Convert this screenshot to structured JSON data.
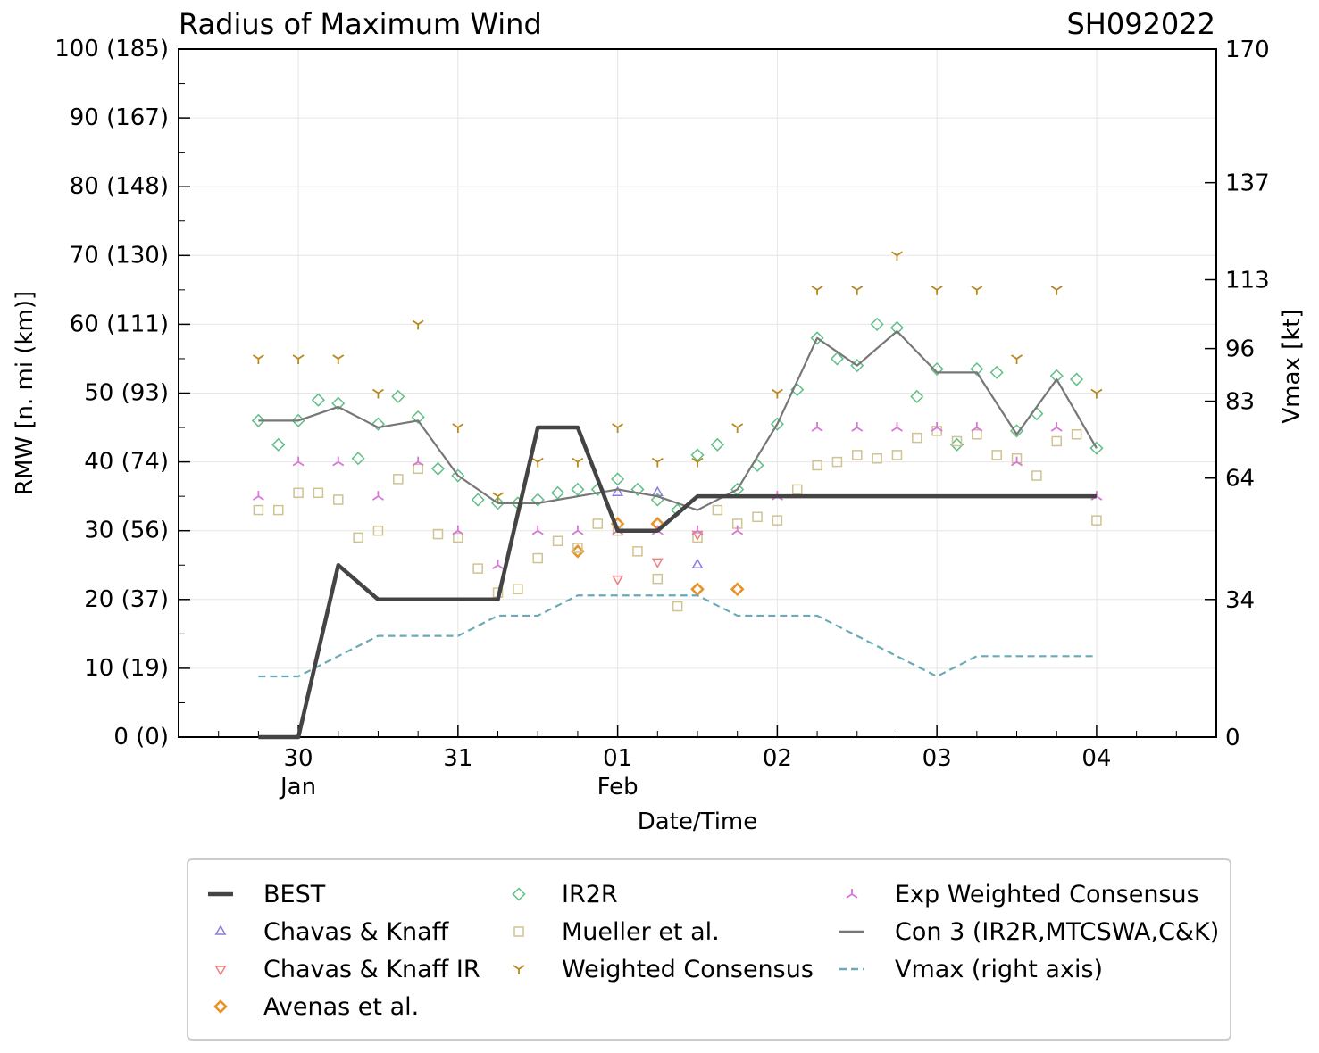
{
  "title": "Radius of Maximum Wind",
  "storm_id": "SH092022",
  "chart_data": {
    "type": "line",
    "title": "Radius of Maximum Wind",
    "xlabel": "Date/Time",
    "ylabel": "RMW [n. mi (km)]",
    "y2label": "Vmax [kt]",
    "x_units": "days after 00 UTC 30 Jan 2022",
    "xlim": [
      -0.75,
      5.75
    ],
    "ylim": [
      0,
      100
    ],
    "x_ticks": [
      {
        "x": 0,
        "label": "30",
        "sub": "Jan"
      },
      {
        "x": 1,
        "label": "31",
        "sub": ""
      },
      {
        "x": 2,
        "label": "01",
        "sub": "Feb"
      },
      {
        "x": 3,
        "label": "02",
        "sub": ""
      },
      {
        "x": 4,
        "label": "03",
        "sub": ""
      },
      {
        "x": 5,
        "label": "04",
        "sub": ""
      }
    ],
    "y_ticks": [
      {
        "v": 0,
        "label": "0 (0)"
      },
      {
        "v": 10,
        "label": "10 (19)"
      },
      {
        "v": 20,
        "label": "20 (37)"
      },
      {
        "v": 30,
        "label": "30 (56)"
      },
      {
        "v": 40,
        "label": "40 (74)"
      },
      {
        "v": 50,
        "label": "50 (93)"
      },
      {
        "v": 60,
        "label": "60 (111)"
      },
      {
        "v": 70,
        "label": "70 (130)"
      },
      {
        "v": 80,
        "label": "80 (148)"
      },
      {
        "v": 90,
        "label": "90 (167)"
      },
      {
        "v": 100,
        "label": "100 (185)"
      }
    ],
    "y2_range": [
      0,
      170
    ],
    "y2_ticks": [
      {
        "v": 0,
        "label": "0"
      },
      {
        "v": 34,
        "label": "34"
      },
      {
        "v": 64,
        "label": "64"
      },
      {
        "v": 83,
        "label": "83"
      },
      {
        "v": 96,
        "label": "96"
      },
      {
        "v": 113,
        "label": "113"
      },
      {
        "v": 137,
        "label": "137"
      },
      {
        "v": 170,
        "label": "170"
      }
    ],
    "series": [
      {
        "name": "BEST",
        "marker": "line",
        "color": "#444444",
        "points": [
          [
            -0.25,
            0
          ],
          [
            0,
            0
          ],
          [
            0.25,
            25
          ],
          [
            0.5,
            20
          ],
          [
            0.75,
            20
          ],
          [
            1,
            20
          ],
          [
            1.25,
            20
          ],
          [
            1.5,
            45
          ],
          [
            1.75,
            45
          ],
          [
            2,
            30
          ],
          [
            2.25,
            30
          ],
          [
            2.5,
            35
          ],
          [
            2.75,
            35
          ],
          [
            3,
            35
          ],
          [
            3.25,
            35
          ],
          [
            3.5,
            35
          ],
          [
            3.75,
            35
          ],
          [
            4,
            35
          ],
          [
            4.25,
            35
          ],
          [
            4.5,
            35
          ],
          [
            4.75,
            35
          ],
          [
            5,
            35
          ]
        ]
      },
      {
        "name": "Chavas & Knaff",
        "marker": "triangle-up",
        "color": "#8a7ce0",
        "points": [
          [
            2,
            35.5
          ],
          [
            2.25,
            35.5
          ],
          [
            2.5,
            25
          ]
        ]
      },
      {
        "name": "Chavas & Knaff IR",
        "marker": "triangle-down",
        "color": "#ee8080",
        "points": [
          [
            2,
            23
          ],
          [
            2.25,
            25.5
          ],
          [
            2.5,
            29.5
          ]
        ]
      },
      {
        "name": "Avenas et al.",
        "marker": "diamond-bold",
        "color": "#e8922a",
        "points": [
          [
            1.75,
            27
          ],
          [
            2,
            31
          ],
          [
            2.25,
            31
          ],
          [
            2.5,
            21.5
          ],
          [
            2.75,
            21.5
          ]
        ]
      },
      {
        "name": "IR2R",
        "marker": "diamond",
        "color": "#5fbf86",
        "points": [
          [
            -0.25,
            46
          ],
          [
            -0.125,
            42.5
          ],
          [
            0,
            46
          ],
          [
            0.125,
            49
          ],
          [
            0.25,
            48.5
          ],
          [
            0.375,
            40.5
          ],
          [
            0.5,
            45.5
          ],
          [
            0.625,
            49.5
          ],
          [
            0.75,
            46.5
          ],
          [
            0.875,
            39
          ],
          [
            1,
            38
          ],
          [
            1.125,
            34.5
          ],
          [
            1.25,
            34
          ],
          [
            1.375,
            34
          ],
          [
            1.5,
            34.5
          ],
          [
            1.625,
            35.5
          ],
          [
            1.75,
            36
          ],
          [
            1.875,
            36
          ],
          [
            2,
            37.5
          ],
          [
            2.125,
            36
          ],
          [
            2.25,
            34.5
          ],
          [
            2.375,
            33
          ],
          [
            2.5,
            41
          ],
          [
            2.625,
            42.5
          ],
          [
            2.75,
            36
          ],
          [
            2.875,
            39.5
          ],
          [
            3,
            45.5
          ],
          [
            3.125,
            50.5
          ],
          [
            3.25,
            58
          ],
          [
            3.375,
            55
          ],
          [
            3.5,
            54
          ],
          [
            3.625,
            60
          ],
          [
            3.75,
            59.5
          ],
          [
            3.875,
            49.5
          ],
          [
            4,
            53.5
          ],
          [
            4.125,
            42.5
          ],
          [
            4.25,
            53.5
          ],
          [
            4.375,
            53
          ],
          [
            4.5,
            44.5
          ],
          [
            4.625,
            47
          ],
          [
            4.75,
            52.5
          ],
          [
            4.875,
            52
          ],
          [
            5,
            42
          ]
        ]
      },
      {
        "name": "Mueller et al.",
        "marker": "square",
        "color": "#cfc390",
        "points": [
          [
            -0.25,
            33
          ],
          [
            -0.125,
            33
          ],
          [
            0,
            35.5
          ],
          [
            0.125,
            35.5
          ],
          [
            0.25,
            34.5
          ],
          [
            0.375,
            29
          ],
          [
            0.5,
            30
          ],
          [
            0.625,
            37.5
          ],
          [
            0.75,
            39
          ],
          [
            0.875,
            29.5
          ],
          [
            1,
            29
          ],
          [
            1.125,
            24.5
          ],
          [
            1.25,
            21
          ],
          [
            1.375,
            21.5
          ],
          [
            1.5,
            26
          ],
          [
            1.625,
            28.5
          ],
          [
            1.75,
            27.5
          ],
          [
            1.875,
            31
          ],
          [
            2,
            30
          ],
          [
            2.125,
            27
          ],
          [
            2.25,
            23
          ],
          [
            2.375,
            19
          ],
          [
            2.5,
            29
          ],
          [
            2.625,
            33
          ],
          [
            2.75,
            31
          ],
          [
            2.875,
            32
          ],
          [
            3,
            31.5
          ],
          [
            3.125,
            36
          ],
          [
            3.25,
            39.5
          ],
          [
            3.375,
            40
          ],
          [
            3.5,
            41
          ],
          [
            3.625,
            40.5
          ],
          [
            3.75,
            41
          ],
          [
            3.875,
            43.5
          ],
          [
            4,
            44.5
          ],
          [
            4.125,
            43
          ],
          [
            4.25,
            44
          ],
          [
            4.375,
            41
          ],
          [
            4.5,
            40.5
          ],
          [
            4.625,
            38
          ],
          [
            4.75,
            43
          ],
          [
            4.875,
            44
          ],
          [
            5,
            31.5
          ]
        ]
      },
      {
        "name": "Weighted Consensus",
        "marker": "tri-down",
        "color": "#b8881e",
        "points": [
          [
            -0.25,
            55
          ],
          [
            0,
            55
          ],
          [
            0.25,
            55
          ],
          [
            0.5,
            50
          ],
          [
            0.75,
            60
          ],
          [
            1,
            45
          ],
          [
            1.25,
            35
          ],
          [
            1.5,
            40
          ],
          [
            1.75,
            40
          ],
          [
            2,
            45
          ],
          [
            2.25,
            40
          ],
          [
            2.5,
            40
          ],
          [
            2.75,
            45
          ],
          [
            3,
            50
          ],
          [
            3.25,
            65
          ],
          [
            3.5,
            65
          ],
          [
            3.75,
            70
          ],
          [
            4,
            65
          ],
          [
            4.25,
            65
          ],
          [
            4.5,
            55
          ],
          [
            4.75,
            65
          ],
          [
            5,
            50
          ]
        ]
      },
      {
        "name": "Exp Weighted Consensus",
        "marker": "tri-up",
        "color": "#d977d9",
        "points": [
          [
            -0.25,
            35
          ],
          [
            0,
            40
          ],
          [
            0.25,
            40
          ],
          [
            0.5,
            35
          ],
          [
            0.75,
            40
          ],
          [
            1,
            30
          ],
          [
            1.25,
            25
          ],
          [
            1.5,
            30
          ],
          [
            1.75,
            30
          ],
          [
            2,
            30
          ],
          [
            2.25,
            30
          ],
          [
            2.5,
            30
          ],
          [
            2.75,
            30
          ],
          [
            3,
            35
          ],
          [
            3.25,
            45
          ],
          [
            3.5,
            45
          ],
          [
            3.75,
            45
          ],
          [
            4,
            45
          ],
          [
            4.25,
            45
          ],
          [
            4.5,
            40
          ],
          [
            4.75,
            45
          ],
          [
            5,
            35
          ]
        ]
      },
      {
        "name": "Con 3 (IR2R,MTCSWA,C&K)",
        "marker": "line",
        "color": "#777777",
        "points": [
          [
            -0.25,
            46
          ],
          [
            0,
            46
          ],
          [
            0.25,
            48
          ],
          [
            0.5,
            45
          ],
          [
            0.75,
            46
          ],
          [
            1,
            38
          ],
          [
            1.25,
            34
          ],
          [
            1.5,
            34
          ],
          [
            1.75,
            35
          ],
          [
            2,
            36
          ],
          [
            2.25,
            35
          ],
          [
            2.5,
            33
          ],
          [
            2.75,
            36
          ],
          [
            3,
            45.5
          ],
          [
            3.25,
            58
          ],
          [
            3.5,
            54
          ],
          [
            3.75,
            59
          ],
          [
            4,
            53
          ],
          [
            4.25,
            53
          ],
          [
            4.5,
            44
          ],
          [
            4.75,
            52
          ],
          [
            5,
            42
          ]
        ]
      },
      {
        "name": "Vmax (right axis)",
        "marker": "dashed",
        "color": "#6aaab8",
        "axis": "right",
        "points": [
          [
            -0.25,
            15
          ],
          [
            0,
            15
          ],
          [
            0.25,
            20
          ],
          [
            0.5,
            25
          ],
          [
            0.75,
            25
          ],
          [
            1,
            25
          ],
          [
            1.25,
            30
          ],
          [
            1.5,
            30
          ],
          [
            1.75,
            35
          ],
          [
            2,
            35
          ],
          [
            2.25,
            35
          ],
          [
            2.5,
            35
          ],
          [
            2.75,
            30
          ],
          [
            3,
            30
          ],
          [
            3.25,
            30
          ],
          [
            3.5,
            25
          ],
          [
            3.75,
            20
          ],
          [
            4,
            15
          ],
          [
            4.25,
            20
          ],
          [
            4.5,
            20
          ],
          [
            4.75,
            20
          ],
          [
            5,
            20
          ]
        ]
      }
    ]
  }
}
